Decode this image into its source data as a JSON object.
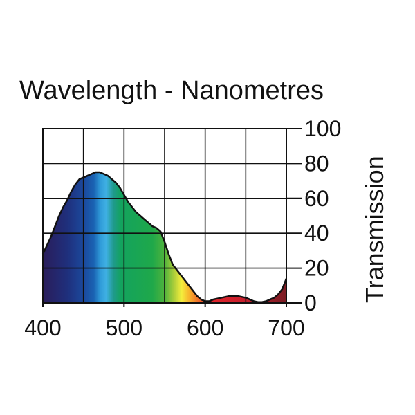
{
  "chart_data": {
    "type": "area",
    "title": "Wavelength - Nanometres",
    "xlabel": "",
    "ylabel": "Transmission",
    "xlim": [
      400,
      700
    ],
    "ylim": [
      0,
      100
    ],
    "x_ticks": [
      400,
      500,
      600,
      700
    ],
    "x_tick_labels": [
      "400",
      "500",
      "600",
      "700"
    ],
    "y_ticks": [
      0,
      20,
      40,
      60,
      80,
      100
    ],
    "y_tick_labels": [
      "0",
      "20",
      "40",
      "60",
      "80",
      "100"
    ],
    "y_axis_side": "right",
    "grid": true,
    "fill": "visible-spectrum-gradient",
    "series": [
      {
        "x": [
          400,
          405,
          410,
          415,
          420,
          425,
          430,
          435,
          440,
          445,
          450,
          455,
          460,
          465,
          470,
          475,
          480,
          485,
          490,
          495,
          500,
          505,
          510,
          515,
          520,
          525,
          530,
          535,
          540,
          545,
          550,
          555,
          560,
          565,
          570,
          575,
          580,
          585,
          590,
          595,
          600,
          605,
          610,
          615,
          620,
          625,
          630,
          635,
          640,
          645,
          650,
          655,
          660,
          665,
          670,
          675,
          680,
          685,
          690,
          695,
          700
        ],
        "y": [
          28,
          33,
          38,
          44,
          50,
          55,
          59,
          64,
          68,
          71,
          72,
          73,
          74,
          75,
          75,
          74,
          73,
          71,
          69,
          66,
          62,
          58,
          55,
          52,
          50,
          48,
          46,
          44,
          43,
          41,
          35,
          28,
          22,
          19,
          16,
          13,
          10,
          7,
          4,
          2,
          1,
          1,
          2,
          2.5,
          3,
          3.5,
          4,
          4,
          4,
          3.5,
          3,
          2,
          1,
          0.5,
          0.5,
          1,
          2,
          3,
          5,
          8,
          14
        ]
      }
    ]
  }
}
